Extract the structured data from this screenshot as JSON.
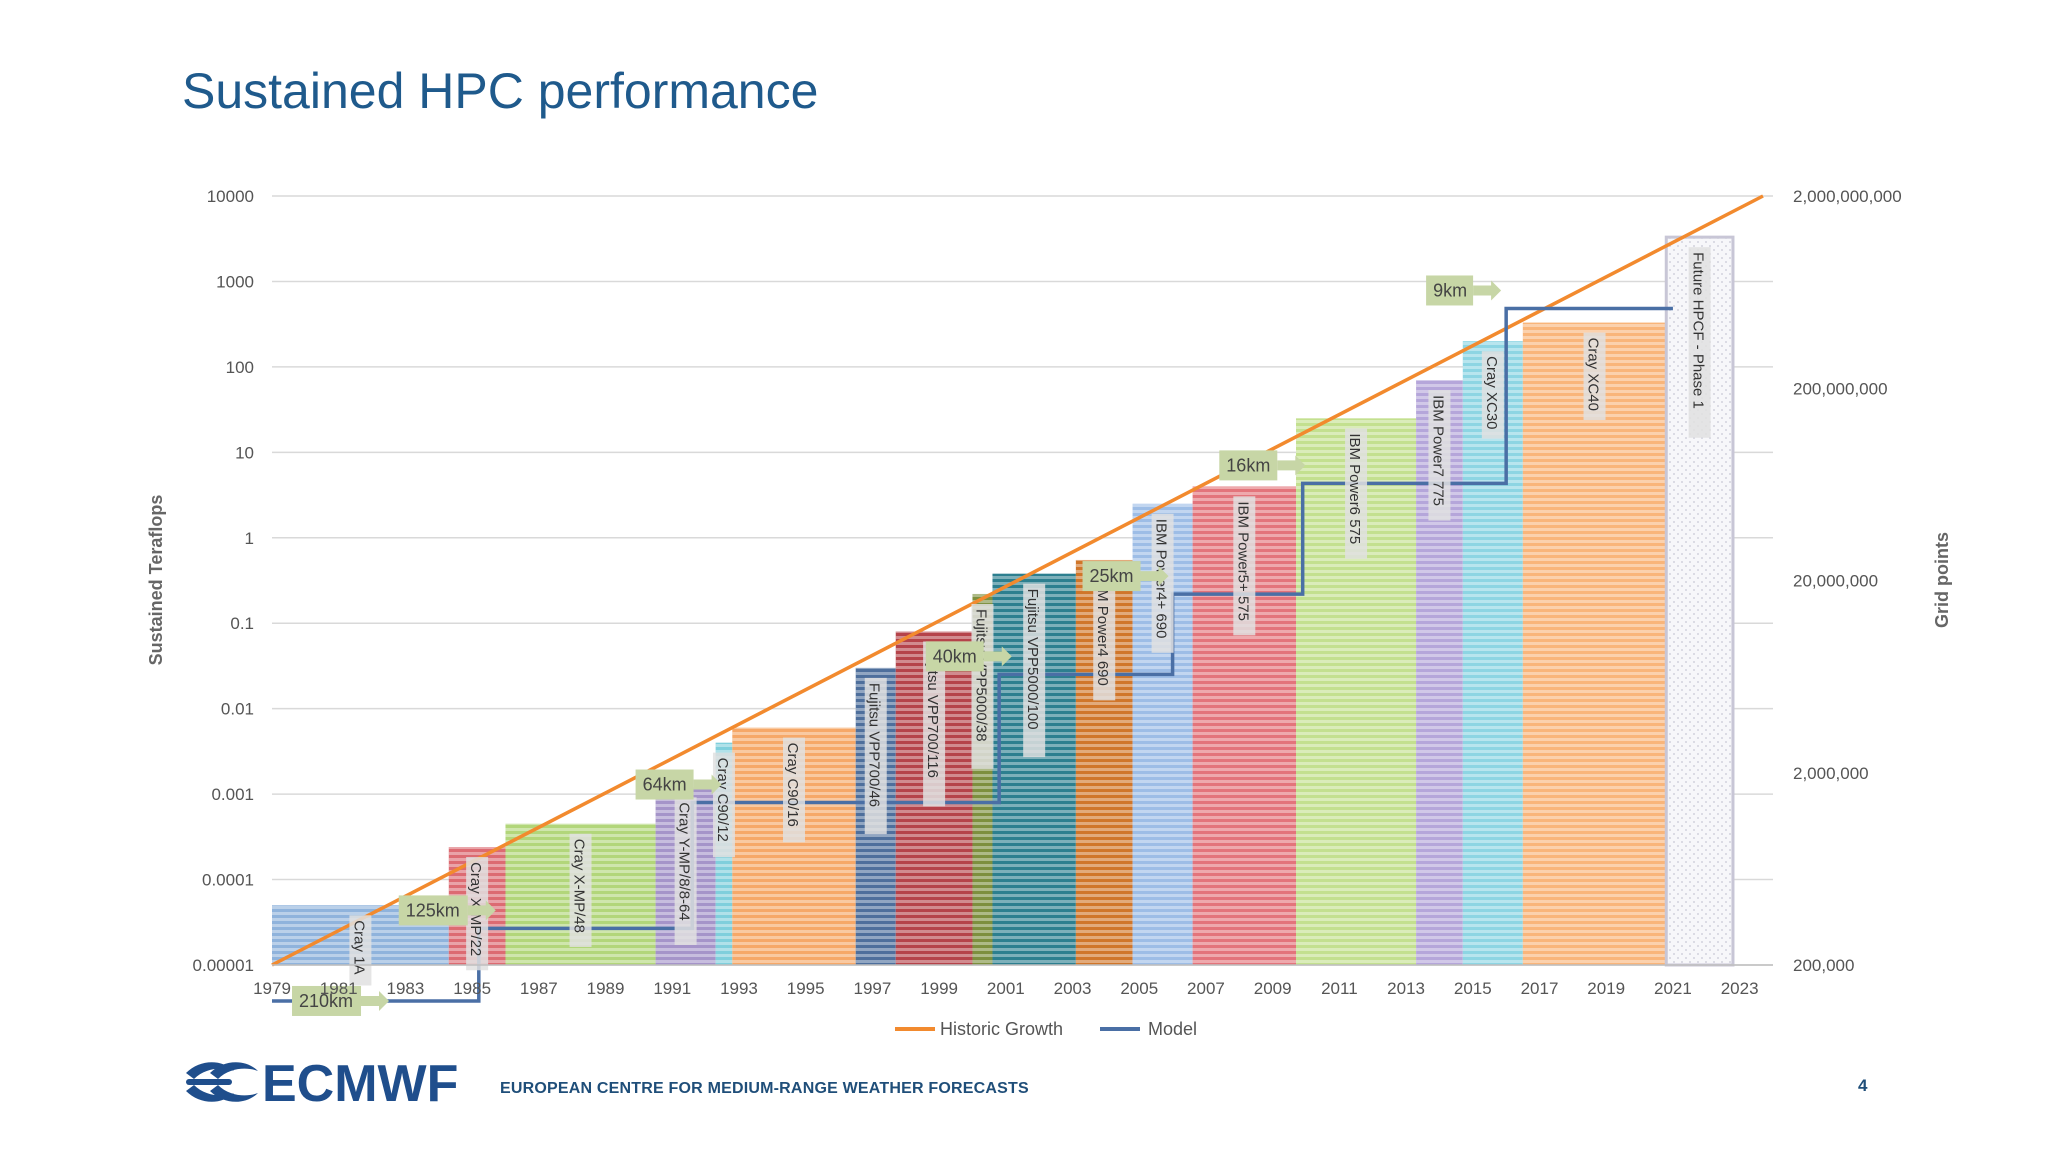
{
  "slide": {
    "title": "Sustained HPC performance",
    "org_name": "EUROPEAN CENTRE FOR MEDIUM-RANGE WEATHER FORECASTS",
    "logo_text": "ECMWF",
    "page_number": "4"
  },
  "colors": {
    "title": "#1f5a8c",
    "historic_growth": "#f28a2e",
    "model": "#4a6fa5"
  },
  "chart_data": {
    "type": "bar",
    "ylabel": "Sustained Teraflops",
    "y2label": "Grid points",
    "yscale": "log",
    "ylim": [
      1e-05,
      10000
    ],
    "xlim": [
      1979,
      2024
    ],
    "y_ticks": [
      "10000",
      "1000",
      "100",
      "10",
      "1",
      "0.1",
      "0.01",
      "0.001",
      "0.0001",
      "0.00001"
    ],
    "y2_ticks": [
      "2,000,000,000",
      "200,000,000",
      "20,000,000",
      "2,000,000",
      "200,000"
    ],
    "x_ticks": [
      "1979",
      "1981",
      "1983",
      "1985",
      "1987",
      "1989",
      "1991",
      "1993",
      "1995",
      "1997",
      "1999",
      "2001",
      "2003",
      "2005",
      "2007",
      "2009",
      "2011",
      "2013",
      "2015",
      "2017",
      "2019",
      "2021",
      "2023"
    ],
    "grid": true,
    "legend_position": "bottom",
    "legend": [
      "Historic Growth",
      "Model"
    ],
    "bars": [
      {
        "label": "Cray 1A",
        "start": 1979,
        "end": 1984.3,
        "value": 5e-05,
        "color": "#8fb3dc"
      },
      {
        "label": "Cray X-MP/22",
        "start": 1984.3,
        "end": 1986,
        "value": 0.00024,
        "color": "#dc6b72"
      },
      {
        "label": "Cray X-MP/48",
        "start": 1986,
        "end": 1990.5,
        "value": 0.00045,
        "color": "#b2d67a"
      },
      {
        "label": "Cray Y-MP/8/8-64",
        "start": 1990.5,
        "end": 1992.3,
        "value": 0.0012,
        "color": "#a594c9"
      },
      {
        "label": "Cray C90/12",
        "start": 1992.3,
        "end": 1992.8,
        "value": 0.004,
        "color": "#7fcfdc"
      },
      {
        "label": "Cray C90/16",
        "start": 1992.8,
        "end": 1996.5,
        "value": 0.006,
        "color": "#f6a868"
      },
      {
        "label": "Fujitsu VPP700/46",
        "start": 1996.5,
        "end": 1997.7,
        "value": 0.03,
        "color": "#4e6f9c"
      },
      {
        "label": "Fujitsu VPP700/116",
        "start": 1997.7,
        "end": 2000,
        "value": 0.08,
        "color": "#b5434a"
      },
      {
        "label": "Fujitsu VPP5000/38",
        "start": 2000,
        "end": 2000.6,
        "value": 0.22,
        "color": "#7d8f3e"
      },
      {
        "label": "Fujitsu VPP5000/100",
        "start": 2000.6,
        "end": 2003.1,
        "value": 0.38,
        "color": "#2d7f8f"
      },
      {
        "label": "IBM Power4 690",
        "start": 2003.1,
        "end": 2004.8,
        "value": 0.55,
        "color": "#d0762a"
      },
      {
        "label": "IBM Power4+ 690",
        "start": 2004.8,
        "end": 2006.6,
        "value": 2.5,
        "color": "#9dbde6"
      },
      {
        "label": "IBM Power5+ 575",
        "start": 2006.6,
        "end": 2009.7,
        "value": 4,
        "color": "#e3747b"
      },
      {
        "label": "IBM Power6 575",
        "start": 2009.7,
        "end": 2013.3,
        "value": 25,
        "color": "#c3e08f"
      },
      {
        "label": "IBM Power7 775",
        "start": 2013.3,
        "end": 2014.7,
        "value": 70,
        "color": "#b5a6da"
      },
      {
        "label": "Cray XC30",
        "start": 2014.7,
        "end": 2016.5,
        "value": 200,
        "color": "#8dd5e3"
      },
      {
        "label": "Cray XC40",
        "start": 2016.5,
        "end": 2020.8,
        "value": 330,
        "color": "#f9b57a"
      },
      {
        "label": "Future HPCF - Phase 1",
        "start": 2020.8,
        "end": 2022.8,
        "value": 3300,
        "color": "#f2f2f6"
      }
    ],
    "series": [
      {
        "name": "Historic Growth",
        "type": "line",
        "x": [
          1979,
          2023.7
        ],
        "y": [
          1e-05,
          10000
        ]
      },
      {
        "name": "Model",
        "type": "step",
        "x": [
          1979,
          1985.2,
          1985.2,
          1991.6,
          1991.6,
          2000.8,
          2000.8,
          2006,
          2006,
          2009.9,
          2009.9,
          2016,
          2016,
          2021
        ],
        "grid_points": [
          130000,
          130000,
          310000,
          310000,
          1400000,
          1400000,
          6500000,
          6500000,
          17000000,
          17000000,
          64000000,
          64000000,
          520000000,
          520000000
        ]
      }
    ],
    "annotations": [
      "210km",
      "125km",
      "64km",
      "40km",
      "25km",
      "16km",
      "9km"
    ]
  }
}
